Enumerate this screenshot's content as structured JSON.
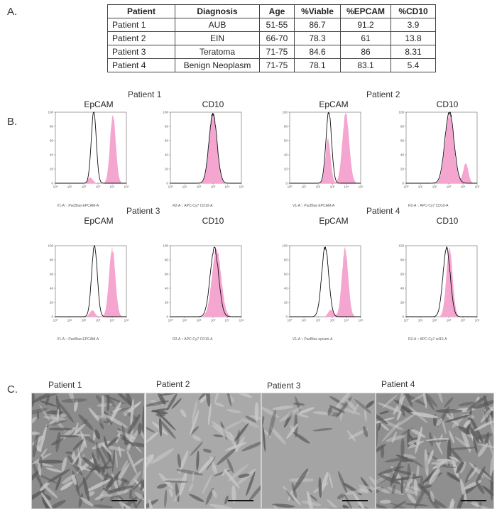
{
  "panels": {
    "a": "A.",
    "b": "B.",
    "c": "C."
  },
  "table": {
    "headers": [
      "Patient",
      "Diagnosis",
      "Age",
      "%Viable",
      "%EPCAM",
      "%CD10"
    ],
    "rows": [
      [
        "Patient 1",
        "AUB",
        "51-55",
        "86.7",
        "91.2",
        "3.9"
      ],
      [
        "Patient 2",
        "EIN",
        "66-70",
        "78.3",
        "61",
        "13.8"
      ],
      [
        "Patient 3",
        "Teratoma",
        "71-75",
        "84.6",
        "86",
        "8.31"
      ],
      [
        "Patient 4",
        "Benign Neoplasm",
        "71-75",
        "78.1",
        "83.1",
        "5.4"
      ]
    ]
  },
  "flow": {
    "patient_titles": [
      "Patient 1",
      "Patient 2",
      "Patient 3",
      "Patient 4"
    ],
    "markers": [
      "EpCAM",
      "CD10"
    ],
    "histograms": [
      {
        "patient": "Patient 1",
        "marker": "EpCAM",
        "xlabel": "V1-A :: PacBlue EPCAM-A"
      },
      {
        "patient": "Patient 1",
        "marker": "CD10",
        "xlabel": "R2-A :: APC-Cy7 CD10-A"
      },
      {
        "patient": "Patient 2",
        "marker": "EpCAM",
        "xlabel": "V1-A :: PacBlue EPCAM-A"
      },
      {
        "patient": "Patient 2",
        "marker": "CD10",
        "xlabel": "R2-A :: APC-Cy7 CD10-A"
      },
      {
        "patient": "Patient 3",
        "marker": "EpCAM",
        "xlabel": "V1-A :: PacBlue EPCAM-A"
      },
      {
        "patient": "Patient 3",
        "marker": "CD10",
        "xlabel": "R2-A :: APC-Cy7 CD10-A"
      },
      {
        "patient": "Patient 4",
        "marker": "EpCAM",
        "xlabel": "V1-A :: PacBlue epcam-A"
      },
      {
        "patient": "Patient 4",
        "marker": "CD10",
        "xlabel": "R2-A :: APC-Cy7 cd10-A"
      }
    ],
    "y_ticks": [
      "0",
      "20",
      "40",
      "60",
      "80",
      "100"
    ],
    "x_ticks": [
      "10⁰",
      "10¹",
      "10²",
      "10³",
      "10⁴",
      "10⁵"
    ],
    "colors": {
      "stained_fill": "#f4a6d0",
      "control_line": "#111111"
    }
  },
  "chart_data": [
    {
      "type": "area",
      "title": "EpCAM",
      "ylim": [
        0,
        100
      ],
      "xlim": [
        0,
        5
      ],
      "x_scale": "log10",
      "series": [
        {
          "center": 2.7,
          "width": 0.18,
          "peak": 100
        },
        {
          "center": 4.05,
          "width": 0.2,
          "peak": 96,
          "secondary_center": 2.45,
          "secondary_peak": 8
        }
      ]
    },
    {
      "type": "area",
      "title": "CD10",
      "ylim": [
        0,
        100
      ],
      "xlim": [
        0,
        5
      ],
      "x_scale": "log10",
      "series": [
        {
          "center": 3.0,
          "width": 0.28,
          "peak": 98
        },
        {
          "center": 3.0,
          "width": 0.27,
          "peak": 96
        }
      ]
    },
    {
      "type": "area",
      "title": "EpCAM",
      "ylim": [
        0,
        100
      ],
      "xlim": [
        0,
        5
      ],
      "x_scale": "log10",
      "series": [
        {
          "center": 2.75,
          "width": 0.2,
          "peak": 100
        },
        {
          "center": 3.95,
          "width": 0.24,
          "peak": 98,
          "secondary_center": 2.7,
          "secondary_peak": 62
        }
      ]
    },
    {
      "type": "area",
      "title": "CD10",
      "ylim": [
        0,
        100
      ],
      "xlim": [
        0,
        5
      ],
      "x_scale": "log10",
      "series": [
        {
          "center": 3.05,
          "width": 0.32,
          "peak": 100
        },
        {
          "center": 3.05,
          "width": 0.3,
          "peak": 96,
          "secondary_center": 4.2,
          "secondary_peak": 28
        }
      ]
    },
    {
      "type": "area",
      "title": "EpCAM",
      "ylim": [
        0,
        100
      ],
      "xlim": [
        0,
        5
      ],
      "x_scale": "log10",
      "series": [
        {
          "center": 2.75,
          "width": 0.2,
          "peak": 100
        },
        {
          "center": 4.0,
          "width": 0.22,
          "peak": 96,
          "secondary_center": 2.6,
          "secondary_peak": 9
        }
      ]
    },
    {
      "type": "area",
      "title": "CD10",
      "ylim": [
        0,
        100
      ],
      "xlim": [
        0,
        5
      ],
      "x_scale": "log10",
      "series": [
        {
          "center": 3.1,
          "width": 0.3,
          "peak": 96
        },
        {
          "center": 3.25,
          "width": 0.32,
          "peak": 96
        }
      ]
    },
    {
      "type": "area",
      "title": "EpCAM",
      "ylim": [
        0,
        100
      ],
      "xlim": [
        0,
        5
      ],
      "x_scale": "log10",
      "series": [
        {
          "center": 2.5,
          "width": 0.25,
          "peak": 98
        },
        {
          "center": 3.9,
          "width": 0.22,
          "peak": 96,
          "secondary_center": 2.9,
          "secondary_peak": 10
        }
      ]
    },
    {
      "type": "area",
      "title": "CD10",
      "ylim": [
        0,
        100
      ],
      "xlim": [
        0,
        5
      ],
      "x_scale": "log10",
      "series": [
        {
          "center": 2.85,
          "width": 0.26,
          "peak": 96
        },
        {
          "center": 3.05,
          "width": 0.22,
          "peak": 96
        }
      ]
    }
  ],
  "micrographs": [
    {
      "title": "Patient 1",
      "tone": "#8c8c8c",
      "pattern": "dense"
    },
    {
      "title": "Patient 2",
      "tone": "#a9a9a9",
      "pattern": "sparse"
    },
    {
      "title": "Patient 3",
      "tone": "#a4a4a4",
      "pattern": "colonies"
    },
    {
      "title": "Patient 4",
      "tone": "#8f8f8f",
      "pattern": "dense"
    }
  ]
}
